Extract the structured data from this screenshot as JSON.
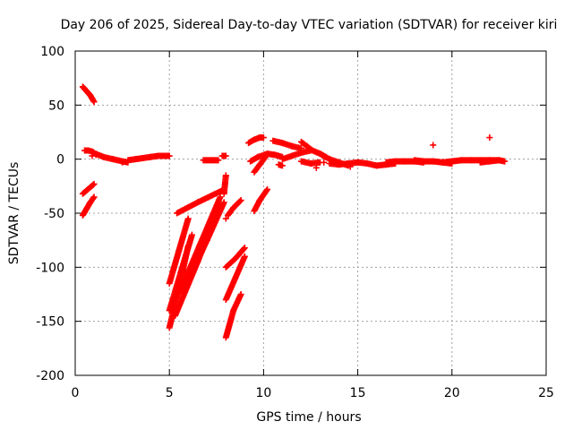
{
  "chart_data": {
    "type": "scatter",
    "title": "Day 206 of 2025, Sidereal Day-to-day VTEC variation (SDTVAR) for receiver kiri",
    "xlabel": "GPS time / hours",
    "ylabel": "SDTVAR / TECUs",
    "xlim": [
      0,
      25
    ],
    "ylim": [
      -200,
      100
    ],
    "xticks": [
      0,
      5,
      10,
      15,
      20,
      25
    ],
    "yticks": [
      -200,
      -150,
      -100,
      -50,
      0,
      50,
      100
    ],
    "grid": true,
    "marker": "+",
    "color": "#ff0000",
    "tracks": [
      {
        "x": [
          0.4,
          0.5,
          0.6,
          0.7,
          0.8,
          0.9,
          1.0
        ],
        "y": [
          67,
          65,
          63,
          61,
          59,
          56,
          53
        ]
      },
      {
        "x": [
          0.5,
          0.7,
          0.9,
          1.0
        ],
        "y": [
          8,
          8,
          7,
          6
        ]
      },
      {
        "x": [
          1.1,
          1.5,
          2.0,
          2.5,
          2.8
        ],
        "y": [
          5,
          2,
          0,
          -2,
          -3
        ]
      },
      {
        "x": [
          2.8,
          3.2,
          3.6,
          4.0,
          4.4,
          4.8,
          5.0
        ],
        "y": [
          -1,
          0,
          1,
          2,
          3,
          3,
          3
        ]
      },
      {
        "x": [
          0.4,
          0.6,
          0.8,
          1.0
        ],
        "y": [
          -32,
          -29,
          -26,
          -23
        ]
      },
      {
        "x": [
          0.4,
          0.6,
          0.8,
          1.0
        ],
        "y": [
          -52,
          -46,
          -40,
          -35
        ]
      },
      {
        "x": [
          5.0,
          5.5,
          6.0
        ],
        "y": [
          -156,
          -120,
          -80
        ]
      },
      {
        "x": [
          5.0,
          5.6,
          6.2
        ],
        "y": [
          -140,
          -105,
          -70
        ]
      },
      {
        "x": [
          5.0,
          5.5,
          6.0
        ],
        "y": [
          -115,
          -85,
          -55
        ]
      },
      {
        "x": [
          5.3,
          6.5,
          7.6
        ],
        "y": [
          -145,
          -95,
          -45
        ]
      },
      {
        "x": [
          5.5,
          6.6,
          7.7
        ],
        "y": [
          -125,
          -80,
          -35
        ]
      },
      {
        "x": [
          5.8,
          7.0,
          7.9
        ],
        "y": [
          -120,
          -75,
          -40
        ]
      },
      {
        "x": [
          5.4,
          6.5,
          7.8
        ],
        "y": [
          -50,
          -40,
          -29
        ]
      },
      {
        "x": [
          6.8,
          7.2,
          7.6
        ],
        "y": [
          -1,
          -1,
          -1
        ]
      },
      {
        "x": [
          7.8,
          8.0
        ],
        "y": [
          3,
          3
        ]
      },
      {
        "x": [
          8.0,
          8.4,
          8.8
        ],
        "y": [
          -165,
          -140,
          -125
        ]
      },
      {
        "x": [
          8.0,
          8.5,
          9.0
        ],
        "y": [
          -130,
          -110,
          -90
        ]
      },
      {
        "x": [
          8.0,
          8.5,
          9.0
        ],
        "y": [
          -100,
          -92,
          -82
        ]
      },
      {
        "x": [
          8.1,
          8.4,
          8.8
        ],
        "y": [
          -52,
          -45,
          -38
        ]
      },
      {
        "x": [
          7.9,
          8.0
        ],
        "y": [
          -32,
          -15
        ]
      },
      {
        "x": [
          9.5,
          9.8,
          10.2
        ],
        "y": [
          -48,
          -38,
          -28
        ]
      },
      {
        "x": [
          9.5,
          9.8,
          10.1
        ],
        "y": [
          -12,
          -5,
          2
        ]
      },
      {
        "x": [
          9.3,
          9.7,
          10.2,
          10.6,
          11.0
        ],
        "y": [
          -2,
          2,
          5,
          4,
          2
        ]
      },
      {
        "x": [
          9.2,
          9.5,
          9.8,
          10.0
        ],
        "y": [
          15,
          18,
          20,
          20
        ]
      },
      {
        "x": [
          10.5,
          11.0,
          11.5,
          12.0
        ],
        "y": [
          17,
          15,
          12,
          10
        ]
      },
      {
        "x": [
          11.0,
          11.5,
          12.0,
          12.5
        ],
        "y": [
          0,
          3,
          6,
          8
        ]
      },
      {
        "x": [
          12.0,
          12.3,
          12.6,
          13.0,
          13.3
        ],
        "y": [
          16,
          12,
          8,
          5,
          2
        ]
      },
      {
        "x": [
          12.0,
          12.5,
          13.0
        ],
        "y": [
          -2,
          -4,
          -3
        ]
      },
      {
        "x": [
          10.8,
          11.0
        ],
        "y": [
          -5,
          -6
        ]
      },
      {
        "x": [
          13.0,
          13.5,
          14.0,
          14.5
        ],
        "y": [
          5,
          0,
          -3,
          -6
        ]
      },
      {
        "x": [
          13.5,
          14.0,
          14.5,
          15.0
        ],
        "y": [
          -4,
          -5,
          -4,
          -3
        ]
      },
      {
        "x": [
          15.0,
          15.5,
          16.0,
          16.5,
          17.0
        ],
        "y": [
          -3,
          -4,
          -6,
          -5,
          -4
        ]
      },
      {
        "x": [
          16.5,
          17.0,
          17.5,
          18.0,
          18.5
        ],
        "y": [
          -3,
          -2,
          -2,
          -2,
          -3
        ]
      },
      {
        "x": [
          18.0,
          18.5,
          19.0,
          19.5,
          20.0
        ],
        "y": [
          -1,
          -2,
          -2,
          -3,
          -4
        ]
      },
      {
        "x": [
          19.5,
          20.0,
          20.5,
          21.0,
          21.5,
          22.0
        ],
        "y": [
          -3,
          -2,
          -1,
          -1,
          -1,
          -1
        ]
      },
      {
        "x": [
          21.5,
          22.0,
          22.5,
          22.8
        ],
        "y": [
          -2,
          -1,
          -1,
          -2
        ]
      },
      {
        "x": [
          21.5,
          22.0,
          22.5
        ],
        "y": [
          -3,
          -2,
          -1
        ]
      }
    ],
    "points": [
      {
        "x": 0.9,
        "y": 3
      },
      {
        "x": 1.1,
        "y": 4
      },
      {
        "x": 2.5,
        "y": -3
      },
      {
        "x": 8.0,
        "y": -55
      },
      {
        "x": 12.8,
        "y": -8
      },
      {
        "x": 13.2,
        "y": -3
      },
      {
        "x": 14.6,
        "y": -7
      },
      {
        "x": 19.0,
        "y": 13
      },
      {
        "x": 22.0,
        "y": 20
      }
    ]
  }
}
